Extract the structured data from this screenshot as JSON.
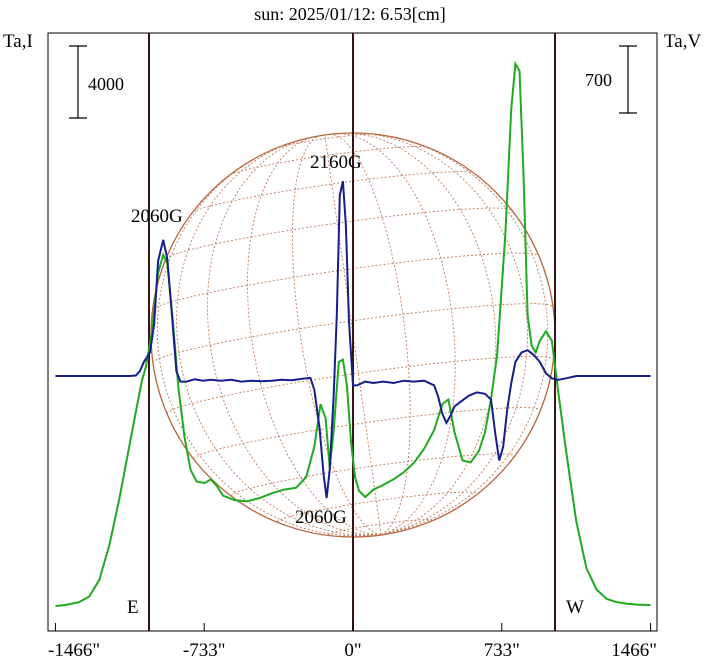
{
  "chart_data": {
    "type": "line",
    "title": "sun: 2025/01/12: 6.53[cm]",
    "left_axis_label": "Ta,I",
    "right_axis_label": "Ta,V",
    "xlim": [
      -1466,
      1466
    ],
    "x_ticks": [
      {
        "value": -1466,
        "label": "-1466\""
      },
      {
        "value": -733,
        "label": "-733\""
      },
      {
        "value": 0,
        "label": "0\""
      },
      {
        "value": 733,
        "label": "733\""
      },
      {
        "value": 1466,
        "label": "1466\""
      }
    ],
    "limb_markers": [
      {
        "value": -1000,
        "label": "E"
      },
      {
        "value": 1000,
        "label": "W"
      }
    ],
    "scale_bars": {
      "left": "4000",
      "right": "700"
    },
    "annotations": [
      {
        "label": "2060G",
        "x": -1080,
        "near": "top"
      },
      {
        "label": "2160G",
        "x": -60,
        "near": "top"
      },
      {
        "label": "2060G",
        "x": -120,
        "near": "bottom"
      }
    ],
    "series": [
      {
        "color": "#1faa1f",
        "points": [
          [
            -1466,
            -4900
          ],
          [
            -1420,
            -4880
          ],
          [
            -1350,
            -4820
          ],
          [
            -1300,
            -4700
          ],
          [
            -1250,
            -4350
          ],
          [
            -1200,
            -3600
          ],
          [
            -1150,
            -2600
          ],
          [
            -1100,
            -1450
          ],
          [
            -1060,
            -550
          ],
          [
            -1040,
            -100
          ],
          [
            -1020,
            200
          ],
          [
            -990,
            950
          ],
          [
            -960,
            2200
          ],
          [
            -935,
            2580
          ],
          [
            -915,
            2400
          ],
          [
            -890,
            1300
          ],
          [
            -860,
            -250
          ],
          [
            -830,
            -1300
          ],
          [
            -800,
            -2000
          ],
          [
            -770,
            -2250
          ],
          [
            -730,
            -2280
          ],
          [
            -700,
            -2200
          ],
          [
            -670,
            -2350
          ],
          [
            -640,
            -2550
          ],
          [
            -580,
            -2650
          ],
          [
            -520,
            -2670
          ],
          [
            -460,
            -2600
          ],
          [
            -400,
            -2500
          ],
          [
            -340,
            -2420
          ],
          [
            -280,
            -2380
          ],
          [
            -230,
            -2150
          ],
          [
            -190,
            -1500
          ],
          [
            -160,
            -600
          ],
          [
            -135,
            -900
          ],
          [
            -115,
            -1950
          ],
          [
            -95,
            -1150
          ],
          [
            -70,
            300
          ],
          [
            -50,
            350
          ],
          [
            -30,
            -200
          ],
          [
            -10,
            -1400
          ],
          [
            10,
            -2150
          ],
          [
            30,
            -2450
          ],
          [
            60,
            -2580
          ],
          [
            100,
            -2420
          ],
          [
            150,
            -2320
          ],
          [
            200,
            -2200
          ],
          [
            250,
            -2050
          ],
          [
            300,
            -1850
          ],
          [
            350,
            -1550
          ],
          [
            400,
            -1150
          ],
          [
            440,
            -600
          ],
          [
            470,
            -500
          ],
          [
            500,
            -1200
          ],
          [
            540,
            -1800
          ],
          [
            580,
            -1840
          ],
          [
            620,
            -1600
          ],
          [
            650,
            -1200
          ],
          [
            680,
            -500
          ],
          [
            710,
            450
          ],
          [
            750,
            3000
          ],
          [
            780,
            5700
          ],
          [
            800,
            6650
          ],
          [
            820,
            6500
          ],
          [
            840,
            4300
          ],
          [
            860,
            1300
          ],
          [
            880,
            650
          ],
          [
            900,
            500
          ],
          [
            920,
            750
          ],
          [
            950,
            950
          ],
          [
            980,
            750
          ],
          [
            1010,
            -300
          ],
          [
            1050,
            -1600
          ],
          [
            1100,
            -3100
          ],
          [
            1150,
            -4100
          ],
          [
            1200,
            -4550
          ],
          [
            1250,
            -4750
          ],
          [
            1300,
            -4820
          ],
          [
            1350,
            -4850
          ],
          [
            1400,
            -4870
          ],
          [
            1466,
            -4880
          ]
        ]
      },
      {
        "color": "#141f8c",
        "points": [
          [
            -1466,
            0
          ],
          [
            -1100,
            0
          ],
          [
            -1070,
            10
          ],
          [
            -1050,
            100
          ],
          [
            -1030,
            300
          ],
          [
            -1000,
            500
          ],
          [
            -980,
            1100
          ],
          [
            -960,
            2450
          ],
          [
            -935,
            2900
          ],
          [
            -915,
            2500
          ],
          [
            -890,
            1200
          ],
          [
            -870,
            100
          ],
          [
            -850,
            -120
          ],
          [
            -820,
            -120
          ],
          [
            -780,
            -70
          ],
          [
            -740,
            -100
          ],
          [
            -700,
            -80
          ],
          [
            -650,
            -100
          ],
          [
            -600,
            -80
          ],
          [
            -550,
            -120
          ],
          [
            -500,
            -100
          ],
          [
            -450,
            -110
          ],
          [
            -400,
            -100
          ],
          [
            -350,
            -80
          ],
          [
            -300,
            -90
          ],
          [
            -250,
            -60
          ],
          [
            -210,
            -40
          ],
          [
            -190,
            -300
          ],
          [
            -165,
            -1100
          ],
          [
            -145,
            -2100
          ],
          [
            -130,
            -2600
          ],
          [
            -115,
            -2000
          ],
          [
            -95,
            -400
          ],
          [
            -80,
            1300
          ],
          [
            -65,
            3850
          ],
          [
            -50,
            4150
          ],
          [
            -35,
            3200
          ],
          [
            -20,
            1200
          ],
          [
            0,
            -200
          ],
          [
            20,
            -200
          ],
          [
            60,
            -120
          ],
          [
            100,
            -150
          ],
          [
            150,
            -120
          ],
          [
            200,
            -150
          ],
          [
            250,
            -100
          ],
          [
            300,
            -120
          ],
          [
            350,
            -100
          ],
          [
            400,
            -200
          ],
          [
            420,
            -450
          ],
          [
            440,
            -800
          ],
          [
            460,
            -1000
          ],
          [
            480,
            -850
          ],
          [
            500,
            -650
          ],
          [
            530,
            -550
          ],
          [
            570,
            -420
          ],
          [
            610,
            -350
          ],
          [
            650,
            -380
          ],
          [
            680,
            -500
          ],
          [
            700,
            -1200
          ],
          [
            720,
            -1800
          ],
          [
            740,
            -1500
          ],
          [
            760,
            -700
          ],
          [
            780,
            -150
          ],
          [
            800,
            300
          ],
          [
            830,
            500
          ],
          [
            860,
            550
          ],
          [
            890,
            450
          ],
          [
            920,
            300
          ],
          [
            950,
            60
          ],
          [
            980,
            -50
          ],
          [
            1010,
            -80
          ],
          [
            1050,
            -50
          ],
          [
            1100,
            0
          ],
          [
            1466,
            0
          ]
        ]
      }
    ]
  }
}
